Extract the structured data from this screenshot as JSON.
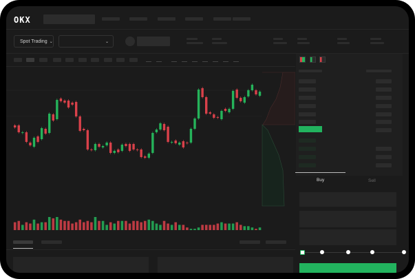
{
  "header": {
    "logo": "OKX"
  },
  "market": {
    "mode_label": "Spot Trading",
    "mode_chevron": "chevron-down-icon",
    "pair_chevron": "chevron-down-icon"
  },
  "order_form": {
    "tabs": [
      {
        "label": "Buy",
        "active": true
      },
      {
        "label": "Sell",
        "active": false
      }
    ],
    "leverage_steps": 5,
    "leverage_selected": 0
  },
  "colors": {
    "up": "#25b35a",
    "down": "#d9414a",
    "background": "#1b1b1b",
    "accent": "#22b35e"
  },
  "chart_data": {
    "type": "candlestick",
    "candles": [
      [
        68,
        65
      ],
      [
        68,
        58
      ],
      [
        57,
        58
      ],
      [
        58,
        44
      ],
      [
        43,
        39
      ],
      [
        37,
        50
      ],
      [
        52,
        44
      ],
      [
        48,
        64
      ],
      [
        63,
        56
      ],
      [
        57,
        85
      ],
      [
        84,
        75
      ],
      [
        77,
        105
      ],
      [
        107,
        103
      ],
      [
        104,
        101
      ],
      [
        104,
        94
      ],
      [
        101,
        98
      ],
      [
        102,
        81
      ],
      [
        81,
        60
      ],
      [
        63,
        61
      ],
      [
        61,
        33
      ],
      [
        33,
        32
      ],
      [
        32,
        41
      ],
      [
        41,
        37
      ],
      [
        36,
        38
      ],
      [
        39,
        43
      ],
      [
        43,
        28
      ],
      [
        28,
        31
      ],
      [
        33,
        29
      ],
      [
        31,
        40
      ],
      [
        41,
        38
      ],
      [
        41,
        31
      ],
      [
        41,
        33
      ],
      [
        33,
        32
      ],
      [
        33,
        22
      ],
      [
        23,
        21
      ],
      [
        21,
        27
      ],
      [
        28,
        57
      ],
      [
        58,
        62
      ],
      [
        62,
        71
      ],
      [
        70,
        61
      ],
      [
        66,
        44
      ],
      [
        43,
        44
      ],
      [
        46,
        42
      ],
      [
        40,
        43
      ],
      [
        45,
        36
      ],
      [
        43,
        42
      ],
      [
        43,
        63
      ],
      [
        63,
        78
      ],
      [
        78,
        120
      ],
      [
        122,
        109
      ],
      [
        109,
        85
      ],
      [
        87,
        85
      ],
      [
        84,
        79
      ],
      [
        80,
        79
      ],
      [
        77,
        89
      ],
      [
        92,
        89
      ],
      [
        87,
        92
      ],
      [
        92,
        118
      ],
      [
        120,
        108
      ],
      [
        108,
        103
      ],
      [
        101,
        109
      ],
      [
        110,
        119
      ],
      [
        119,
        127
      ],
      [
        119,
        113
      ],
      [
        111,
        117
      ]
    ],
    "volume": [
      6,
      7,
      4,
      6,
      5,
      8,
      5,
      6,
      6,
      10,
      9,
      10,
      8,
      7,
      7,
      5,
      6,
      8,
      6,
      7,
      6,
      10,
      7,
      7,
      4,
      6,
      5,
      7,
      7,
      7,
      5,
      7,
      7,
      6,
      7,
      8,
      7,
      5,
      4,
      7,
      5,
      4,
      6,
      4,
      4,
      2,
      1,
      1,
      2,
      4,
      4,
      4,
      4,
      5,
      6,
      5,
      5,
      5,
      6,
      4,
      3,
      3,
      2,
      1,
      2
    ]
  }
}
